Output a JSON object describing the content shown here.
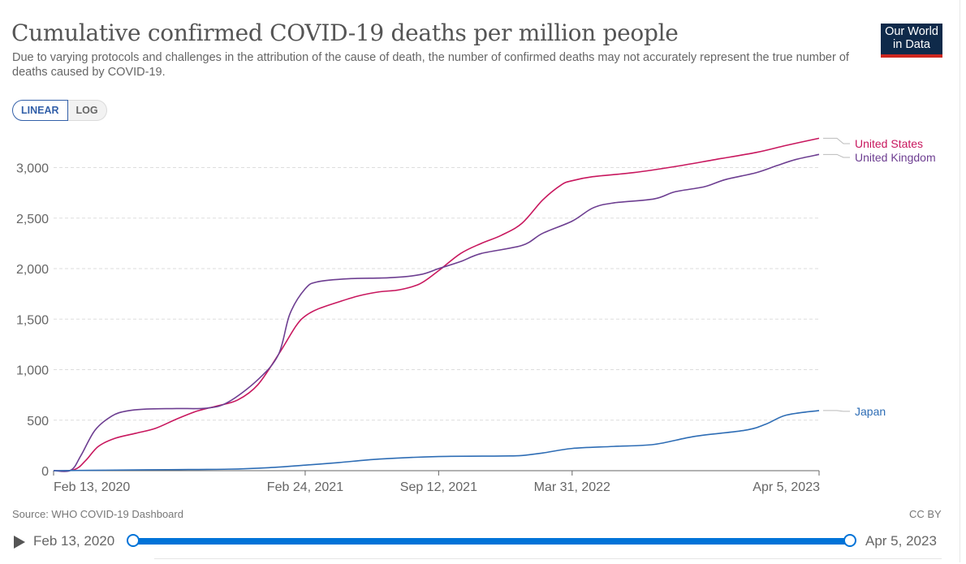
{
  "header": {
    "title": "Cumulative confirmed COVID-19 deaths per million people",
    "subtitle": "Due to varying protocols and challenges in the attribution of the cause of death, the number of confirmed deaths may not accurately represent the true number of deaths caused by COVID-19.",
    "logo_line1": "Our World",
    "logo_line2": "in Data"
  },
  "scale_toggle": {
    "linear_label": "LINEAR",
    "log_label": "LOG",
    "selected": "linear"
  },
  "footer": {
    "source": "Source: WHO COVID-19 Dashboard",
    "license": "CC BY"
  },
  "timeline": {
    "start_label": "Feb 13, 2020",
    "end_label": "Apr 5, 2023"
  },
  "colors": {
    "united_states": "#c8175e",
    "united_kingdom": "#6d3e91",
    "japan": "#2e6db5",
    "grid": "#dddddd",
    "axis": "#666666"
  },
  "chart_data": {
    "type": "line",
    "title": "Cumulative confirmed COVID-19 deaths per million people",
    "x_ticks": [
      "Feb 13, 2020",
      "Feb 24, 2021",
      "Sep 12, 2021",
      "Mar 31, 2022",
      "Apr 5, 2023"
    ],
    "y_ticks": [
      0,
      500,
      1000,
      1500,
      2000,
      2500,
      3000
    ],
    "y_tick_labels": [
      "0",
      "500",
      "1,000",
      "1,500",
      "2,000",
      "2,500",
      "3,000"
    ],
    "ylim": [
      0,
      3300
    ],
    "xlim": [
      "2020-02-13",
      "2023-04-05"
    ],
    "grid": "horizontal dashed",
    "legend": "line-end labels on right",
    "series": [
      {
        "name": "United States",
        "points": [
          [
            "2020-02-13",
            0
          ],
          [
            "2020-03-15",
            10
          ],
          [
            "2020-04-01",
            100
          ],
          [
            "2020-04-20",
            240
          ],
          [
            "2020-05-15",
            320
          ],
          [
            "2020-06-15",
            370
          ],
          [
            "2020-07-15",
            420
          ],
          [
            "2020-08-15",
            510
          ],
          [
            "2020-09-15",
            590
          ],
          [
            "2020-10-15",
            640
          ],
          [
            "2020-11-15",
            700
          ],
          [
            "2020-12-15",
            850
          ],
          [
            "2021-01-15",
            1150
          ],
          [
            "2021-02-10",
            1430
          ],
          [
            "2021-02-24",
            1530
          ],
          [
            "2021-03-15",
            1600
          ],
          [
            "2021-04-15",
            1670
          ],
          [
            "2021-05-15",
            1730
          ],
          [
            "2021-06-15",
            1770
          ],
          [
            "2021-07-15",
            1790
          ],
          [
            "2021-08-15",
            1850
          ],
          [
            "2021-09-12",
            1980
          ],
          [
            "2021-10-15",
            2150
          ],
          [
            "2021-11-15",
            2250
          ],
          [
            "2021-12-15",
            2330
          ],
          [
            "2022-01-15",
            2450
          ],
          [
            "2022-02-15",
            2680
          ],
          [
            "2022-03-15",
            2830
          ],
          [
            "2022-03-31",
            2870
          ],
          [
            "2022-05-01",
            2910
          ],
          [
            "2022-07-01",
            2950
          ],
          [
            "2022-09-01",
            3010
          ],
          [
            "2022-11-01",
            3080
          ],
          [
            "2023-01-01",
            3150
          ],
          [
            "2023-02-15",
            3220
          ],
          [
            "2023-04-05",
            3290
          ]
        ]
      },
      {
        "name": "United Kingdom",
        "points": [
          [
            "2020-02-13",
            0
          ],
          [
            "2020-03-10",
            5
          ],
          [
            "2020-03-25",
            150
          ],
          [
            "2020-04-15",
            400
          ],
          [
            "2020-05-10",
            540
          ],
          [
            "2020-06-01",
            590
          ],
          [
            "2020-07-01",
            610
          ],
          [
            "2020-08-15",
            615
          ],
          [
            "2020-10-01",
            620
          ],
          [
            "2020-11-01",
            680
          ],
          [
            "2020-12-15",
            900
          ],
          [
            "2021-01-15",
            1150
          ],
          [
            "2021-02-01",
            1550
          ],
          [
            "2021-02-24",
            1800
          ],
          [
            "2021-03-15",
            1870
          ],
          [
            "2021-05-01",
            1900
          ],
          [
            "2021-07-01",
            1910
          ],
          [
            "2021-08-15",
            1940
          ],
          [
            "2021-09-12",
            2000
          ],
          [
            "2021-10-15",
            2070
          ],
          [
            "2021-11-15",
            2150
          ],
          [
            "2022-01-15",
            2230
          ],
          [
            "2022-02-15",
            2350
          ],
          [
            "2022-03-31",
            2470
          ],
          [
            "2022-05-01",
            2600
          ],
          [
            "2022-06-01",
            2650
          ],
          [
            "2022-08-01",
            2690
          ],
          [
            "2022-09-01",
            2760
          ],
          [
            "2022-10-15",
            2810
          ],
          [
            "2022-11-15",
            2880
          ],
          [
            "2023-01-01",
            2950
          ],
          [
            "2023-02-01",
            3020
          ],
          [
            "2023-03-01",
            3080
          ],
          [
            "2023-04-05",
            3130
          ]
        ]
      },
      {
        "name": "Japan",
        "points": [
          [
            "2020-02-13",
            0
          ],
          [
            "2020-05-01",
            5
          ],
          [
            "2020-08-01",
            10
          ],
          [
            "2020-11-01",
            15
          ],
          [
            "2021-01-01",
            30
          ],
          [
            "2021-02-24",
            55
          ],
          [
            "2021-04-15",
            80
          ],
          [
            "2021-06-15",
            115
          ],
          [
            "2021-09-12",
            140
          ],
          [
            "2021-12-15",
            145
          ],
          [
            "2022-01-15",
            150
          ],
          [
            "2022-02-15",
            175
          ],
          [
            "2022-03-31",
            220
          ],
          [
            "2022-06-01",
            240
          ],
          [
            "2022-08-01",
            260
          ],
          [
            "2022-10-01",
            340
          ],
          [
            "2022-12-15",
            400
          ],
          [
            "2023-01-15",
            460
          ],
          [
            "2023-02-15",
            550
          ],
          [
            "2023-04-05",
            595
          ]
        ]
      }
    ]
  }
}
